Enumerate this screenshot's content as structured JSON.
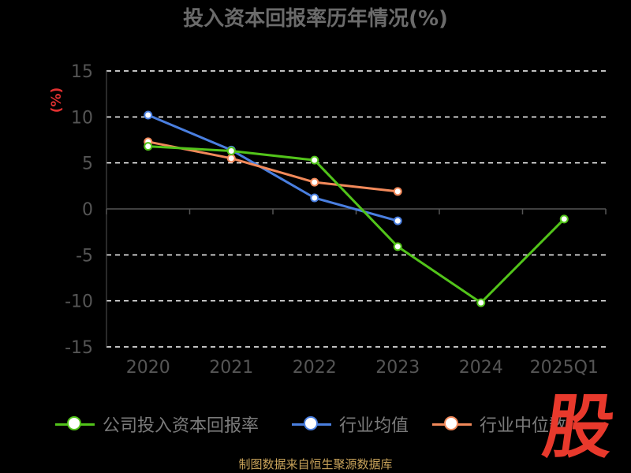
{
  "chart_data": {
    "type": "line",
    "title": "投入资本回报率历年情况(%)",
    "ylabel": "(%)",
    "categories": [
      "2020",
      "2021",
      "2022",
      "2023",
      "2024",
      "2025Q1"
    ],
    "ylim": [
      -15,
      15
    ],
    "yticks": [
      15,
      10,
      5,
      0,
      -5,
      -10,
      -15
    ],
    "grid": true,
    "legend_position": "bottom",
    "series": [
      {
        "name": "公司投入资本回报率",
        "color": "#52c41a",
        "values": [
          6.8,
          6.3,
          5.3,
          -4.1,
          -10.2,
          -1.1
        ]
      },
      {
        "name": "行业均值",
        "color": "#4a7fe0",
        "values": [
          10.2,
          6.4,
          1.2,
          -1.3,
          null,
          null
        ]
      },
      {
        "name": "行业中位数",
        "color": "#f2895a",
        "values": [
          7.3,
          5.5,
          2.9,
          1.9,
          null,
          null
        ]
      }
    ]
  },
  "legend": [
    "公司投入资本回报率",
    "行业均值",
    "行业中位数"
  ],
  "source": "制图数据来自恒生聚源数据库",
  "logo_text": "股"
}
